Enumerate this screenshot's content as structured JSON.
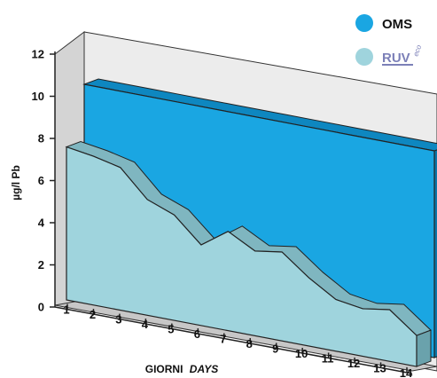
{
  "chart_data": {
    "type": "area",
    "x": [
      1,
      2,
      3,
      4,
      5,
      6,
      7,
      8,
      9,
      10,
      11,
      12,
      13,
      14
    ],
    "series": [
      {
        "name": "OMS",
        "color": "#1aa6e2",
        "values": [
          10,
          10,
          10,
          10,
          10,
          10,
          10,
          10,
          10,
          10,
          10,
          10,
          10,
          10
        ]
      },
      {
        "name": "RUV",
        "color": "#9fd4dd",
        "values": [
          7.4,
          7.2,
          6.9,
          5.6,
          5.1,
          3.9,
          4.8,
          4.1,
          4.3,
          3.3,
          2.5,
          2.3,
          2.5,
          1.5
        ]
      }
    ],
    "yticks": [
      0,
      2,
      4,
      6,
      8,
      10,
      12
    ],
    "ylim": [
      0,
      12
    ],
    "xlabel": "GIORNI",
    "xlabel_italic": "DAYS",
    "ylabel": "µg/l Pb",
    "legend": {
      "placement": "top-right",
      "entries": [
        {
          "label": "OMS",
          "color": "#1aa6e2"
        },
        {
          "label": "RUV",
          "superscript": "eco",
          "color": "#9fd4dd"
        }
      ]
    },
    "grid": false,
    "three_d": true
  }
}
